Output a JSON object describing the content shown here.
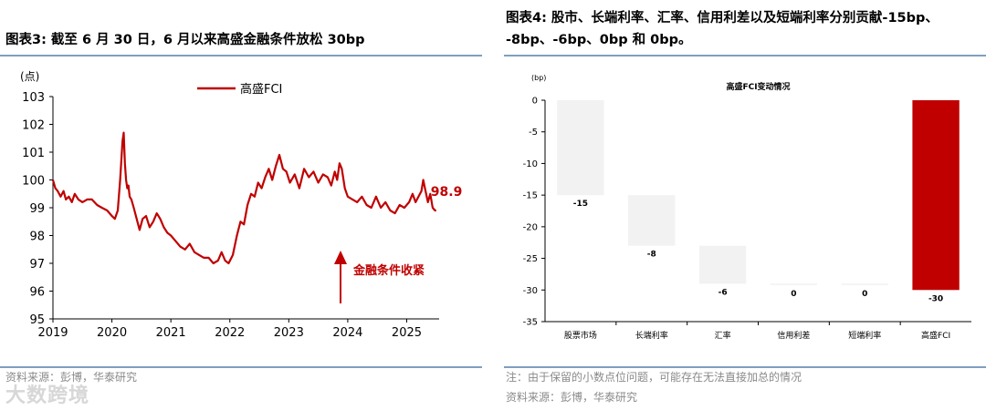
{
  "left": {
    "title": "图表3:  截至 6 月 30 日，6 月以来高盛金融条件放松 30bp",
    "source": "资料来源：彭博，华泰研究",
    "last_value_label": "98.9",
    "annotation": "金融条件收紧",
    "chart_data": {
      "type": "line",
      "title": "",
      "ylabel": "(点)",
      "xlabel": "",
      "ylim": [
        95,
        103
      ],
      "yticks": [
        95,
        96,
        97,
        98,
        99,
        100,
        101,
        102,
        103
      ],
      "xticks": [
        "2019",
        "2020",
        "2021",
        "2022",
        "2023",
        "2024",
        "2025"
      ],
      "xlim": [
        2019.0,
        2025.55
      ],
      "legend": "top-left",
      "color": "#c00000",
      "series": [
        {
          "name": "高盛FCI",
          "x": [
            2019.0,
            2019.04,
            2019.08,
            2019.13,
            2019.18,
            2019.22,
            2019.27,
            2019.32,
            2019.37,
            2019.43,
            2019.5,
            2019.58,
            2019.66,
            2019.75,
            2019.83,
            2019.92,
            2020.0,
            2020.05,
            2020.1,
            2020.14,
            2020.18,
            2020.2,
            2020.22,
            2020.24,
            2020.26,
            2020.28,
            2020.3,
            2020.33,
            2020.37,
            2020.42,
            2020.47,
            2020.52,
            2020.58,
            2020.64,
            2020.7,
            2020.76,
            2020.82,
            2020.88,
            2020.94,
            2021.0,
            2021.08,
            2021.16,
            2021.24,
            2021.32,
            2021.4,
            2021.48,
            2021.56,
            2021.64,
            2021.72,
            2021.8,
            2021.86,
            2021.92,
            2021.98,
            2022.05,
            2022.12,
            2022.18,
            2022.24,
            2022.3,
            2022.36,
            2022.42,
            2022.48,
            2022.54,
            2022.6,
            2022.66,
            2022.72,
            2022.78,
            2022.84,
            2022.9,
            2022.96,
            2023.02,
            2023.1,
            2023.18,
            2023.26,
            2023.34,
            2023.42,
            2023.5,
            2023.58,
            2023.66,
            2023.72,
            2023.78,
            2023.82,
            2023.86,
            2023.9,
            2023.95,
            2024.0,
            2024.08,
            2024.16,
            2024.24,
            2024.32,
            2024.4,
            2024.48,
            2024.56,
            2024.64,
            2024.72,
            2024.8,
            2024.88,
            2024.96,
            2025.04,
            2025.1,
            2025.15,
            2025.2,
            2025.25,
            2025.28,
            2025.32,
            2025.36,
            2025.4,
            2025.44,
            2025.48,
            2025.5
          ],
          "y": [
            100.0,
            99.7,
            99.6,
            99.4,
            99.6,
            99.3,
            99.4,
            99.2,
            99.5,
            99.3,
            99.2,
            99.3,
            99.3,
            99.1,
            99.0,
            98.9,
            98.7,
            98.6,
            98.9,
            100.0,
            101.4,
            101.7,
            100.6,
            100.0,
            99.7,
            99.8,
            99.4,
            99.3,
            99.0,
            98.6,
            98.2,
            98.6,
            98.7,
            98.3,
            98.5,
            98.8,
            98.6,
            98.3,
            98.1,
            98.0,
            97.8,
            97.6,
            97.5,
            97.7,
            97.4,
            97.3,
            97.2,
            97.2,
            97.0,
            97.1,
            97.4,
            97.1,
            97.0,
            97.3,
            98.0,
            98.5,
            98.4,
            99.1,
            99.5,
            99.4,
            99.9,
            99.7,
            100.1,
            100.4,
            100.0,
            100.5,
            100.9,
            100.4,
            100.3,
            99.9,
            100.2,
            99.7,
            100.4,
            100.1,
            100.3,
            99.9,
            100.2,
            100.1,
            99.8,
            100.3,
            100.0,
            100.6,
            100.4,
            99.7,
            99.4,
            99.3,
            99.2,
            99.4,
            99.1,
            99.0,
            99.4,
            99.0,
            99.2,
            98.9,
            98.8,
            99.1,
            99.0,
            99.2,
            99.5,
            99.2,
            99.4,
            99.6,
            100.0,
            99.6,
            99.2,
            99.5,
            99.0,
            98.9,
            98.9
          ]
        }
      ]
    }
  },
  "right": {
    "title_line1": "图表4:  股市、长端利率、汇率、信用利差以及短端利率分别贡献-15bp、",
    "title_line2": "-8bp、-6bp、0bp 和 0bp。",
    "note": "注：由于保留的小数点位问题，可能存在无法直接加总的情况",
    "source": "资料来源：彭博，华泰研究",
    "chart_data": {
      "type": "bar",
      "subtype": "waterfall",
      "title": "高盛FCI变动情况",
      "ylabel": "(bp)",
      "xlabel": "",
      "ylim": [
        -35,
        0
      ],
      "yticks": [
        0,
        -5,
        -10,
        -15,
        -20,
        -25,
        -30,
        -35
      ],
      "categories": [
        "股票市场",
        "长端利率",
        "汇率",
        "信用利差",
        "短端利率",
        "高盛FCI"
      ],
      "values": [
        -15,
        -8,
        -6,
        0,
        0,
        -30
      ],
      "value_labels": [
        "-15",
        "-8",
        "-6",
        "0",
        "0",
        "-30"
      ],
      "total_index": 5,
      "colors": {
        "step": "#f2f2f2",
        "total": "#c00000"
      }
    }
  },
  "watermark": "大数跨境"
}
